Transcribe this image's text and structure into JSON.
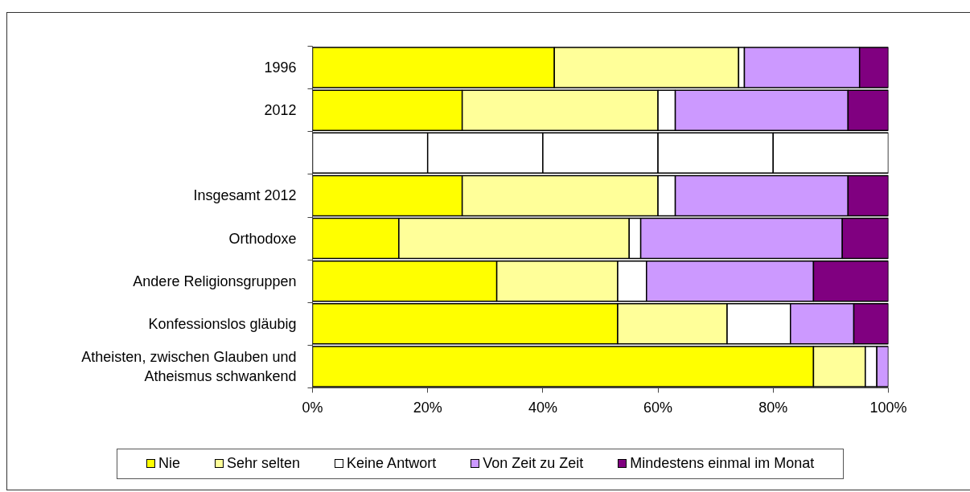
{
  "chart_data": {
    "type": "bar",
    "orientation": "horizontal",
    "stacked": true,
    "categories": [
      "1996",
      "2012",
      null,
      "Insgesamt 2012",
      "Orthodoxe",
      "Andere Religionsgruppen",
      "Konfessionslos gläubig",
      "Atheisten, zwischen Glauben und Atheismus schwankend"
    ],
    "series": [
      {
        "name": "Nie",
        "color": "#ffff00",
        "colors": [
          "#ffff00",
          "#ffff00",
          "#ffffff",
          "#ffff00",
          "#ffff00",
          "#ffff00",
          "#ffff00",
          "#ffff00"
        ],
        "values": [
          42,
          26,
          20,
          26,
          15,
          32,
          53,
          87
        ]
      },
      {
        "name": "Sehr selten",
        "color": "#ffff99",
        "colors": [
          "#ffff99",
          "#ffff99",
          "#ffffff",
          "#ffff99",
          "#ffff99",
          "#ffff99",
          "#ffff99",
          "#ffff99"
        ],
        "values": [
          32,
          34,
          20,
          34,
          40,
          21,
          19,
          9
        ]
      },
      {
        "name": "Keine Antwort",
        "color": "#ffffff",
        "colors": [
          "#ffffff",
          "#ffffff",
          "#ffffff",
          "#ffffff",
          "#ffffff",
          "#ffffff",
          "#ffffff",
          "#ffffff"
        ],
        "values": [
          1,
          3,
          20,
          3,
          2,
          5,
          11,
          2
        ]
      },
      {
        "name": "Von Zeit zu Zeit",
        "color": "#cc99ff",
        "colors": [
          "#cc99ff",
          "#cc99ff",
          "#ffffff",
          "#cc99ff",
          "#cc99ff",
          "#cc99ff",
          "#cc99ff",
          "#cc99ff"
        ],
        "values": [
          20,
          30,
          20,
          30,
          35,
          29,
          11,
          2
        ]
      },
      {
        "name": "Mindestens einmal im Monat",
        "color": "#800080",
        "colors": [
          "#800080",
          "#800080",
          "#ffffff",
          "#800080",
          "#800080",
          "#800080",
          "#800080",
          "#800080"
        ],
        "values": [
          5,
          7,
          20,
          7,
          8,
          13,
          6,
          0
        ]
      }
    ],
    "xlim": [
      0,
      100
    ],
    "xticks": [
      {
        "value": 0,
        "label": "0%"
      },
      {
        "value": 20,
        "label": "20%"
      },
      {
        "value": 40,
        "label": "40%"
      },
      {
        "value": 60,
        "label": "60%"
      },
      {
        "value": 80,
        "label": "80%"
      },
      {
        "value": 100,
        "label": "100%"
      }
    ],
    "legend": "bottom"
  }
}
